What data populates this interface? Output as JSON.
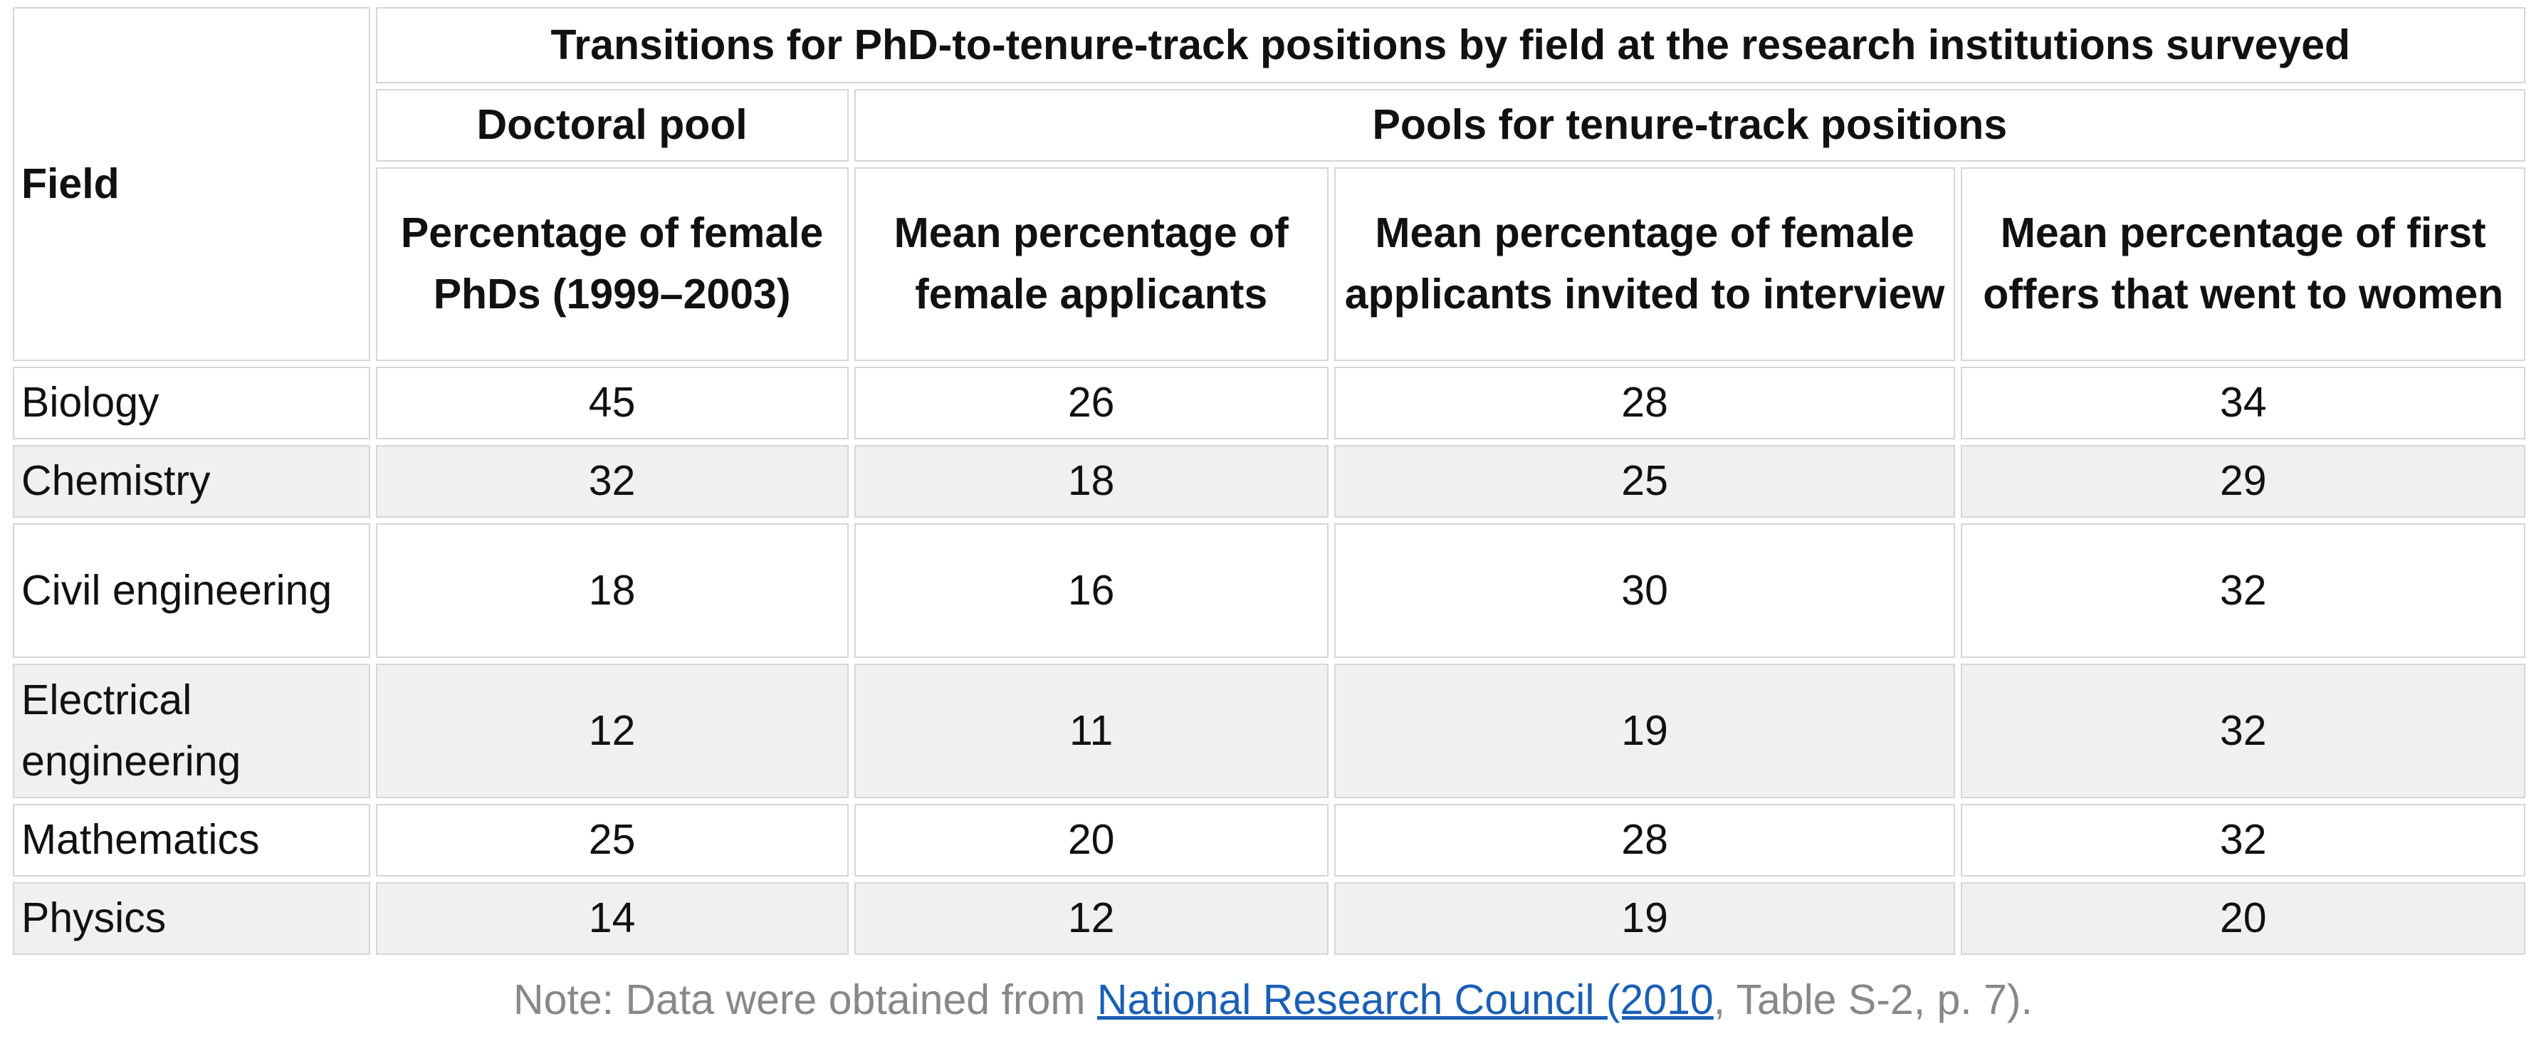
{
  "table": {
    "title": "Transitions for PhD-to-tenure-track positions by field at the research institutions surveyed",
    "field_header": "Field",
    "group_headers": {
      "doctoral": "Doctoral pool",
      "tenure": "Pools for tenure-track positions"
    },
    "column_headers": [
      "Percentage of female PhDs (1999–2003)",
      "Mean percentage of female applicants",
      "Mean percentage of female applicants invited to interview",
      "Mean percentage of first offers that went to women"
    ],
    "rows": [
      {
        "field": "Biology",
        "values": [
          "45",
          "26",
          "28",
          "34"
        ]
      },
      {
        "field": "Chemistry",
        "values": [
          "32",
          "18",
          "25",
          "29"
        ]
      },
      {
        "field": "Civil engineering",
        "values": [
          "18",
          "16",
          "30",
          "32"
        ]
      },
      {
        "field": "Electrical engineering",
        "values": [
          "12",
          "11",
          "19",
          "32"
        ]
      },
      {
        "field": "Mathematics",
        "values": [
          "25",
          "20",
          "28",
          "32"
        ]
      },
      {
        "field": "Physics",
        "values": [
          "14",
          "12",
          "19",
          "20"
        ]
      }
    ]
  },
  "note": {
    "prefix": "Note: Data were obtained from ",
    "link_text": "National Research Council (2010",
    "suffix": ", Table S-2, p. 7)."
  },
  "colors": {
    "text": "#111111",
    "border": "#d6d6d6",
    "row_alt": "#f0f0f0",
    "note_text": "#888888",
    "link": "#1a5fb4"
  }
}
